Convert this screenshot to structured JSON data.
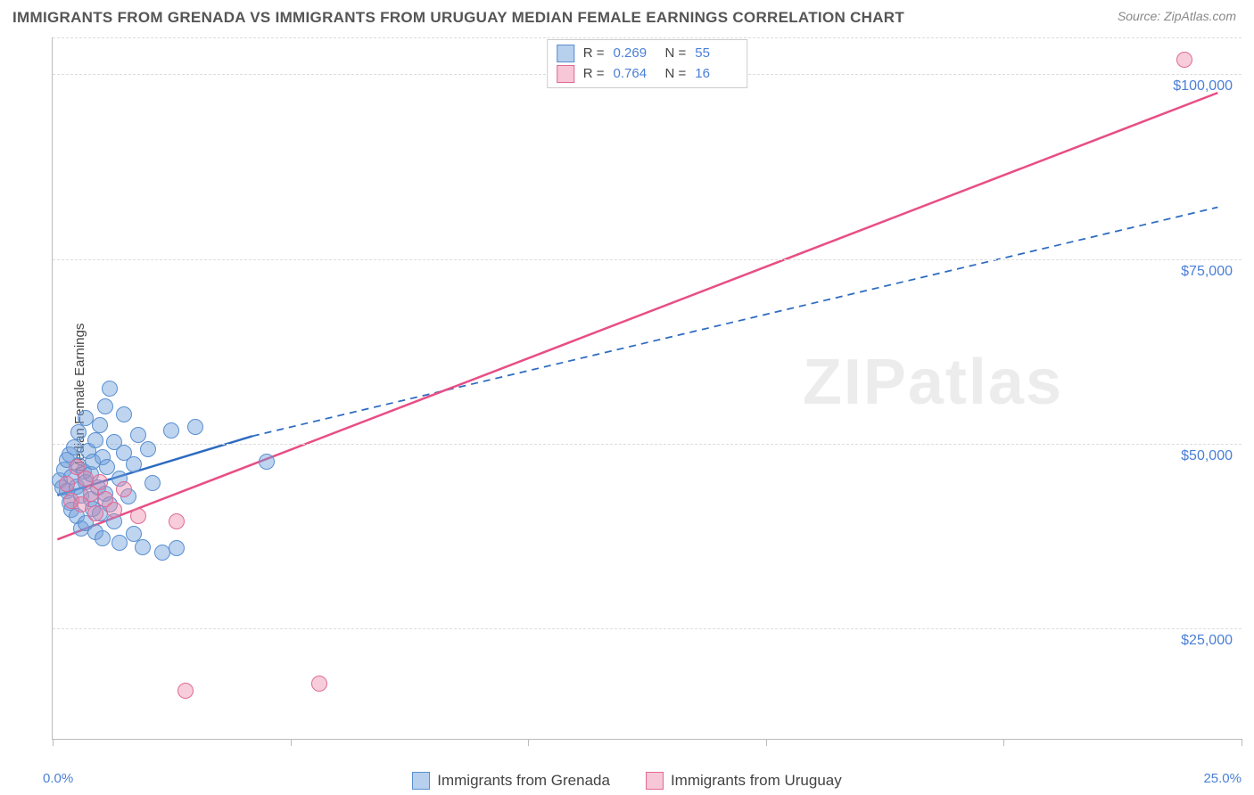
{
  "title": "IMMIGRANTS FROM GRENADA VS IMMIGRANTS FROM URUGUAY MEDIAN FEMALE EARNINGS CORRELATION CHART",
  "source": "Source: ZipAtlas.com",
  "ylabel": "Median Female Earnings",
  "watermark": "ZIPatlas",
  "chart": {
    "type": "scatter",
    "background_color": "#ffffff",
    "grid_color": "#dddddd",
    "axis_color": "#bbbbbb",
    "label_color": "#4a7fd6",
    "text_color": "#444444",
    "title_fontsize": 17,
    "tick_fontsize": 16,
    "marker_radius": 9,
    "xlim": [
      0,
      25
    ],
    "ylim": [
      10000,
      105000
    ],
    "xticks": [
      0,
      5,
      10,
      15,
      20,
      25
    ],
    "xtick_labels": {
      "0": "0.0%",
      "25": "25.0%"
    },
    "yticks": [
      25000,
      50000,
      75000,
      100000
    ],
    "ytick_labels": {
      "25000": "$25,000",
      "50000": "$50,000",
      "75000": "$75,000",
      "100000": "$100,000"
    },
    "series": [
      {
        "name": "Immigrants from Grenada",
        "color_fill": "rgba(110,160,220,0.45)",
        "color_stroke": "#5a8fd0",
        "legend_swatch_fill": "#b7d0ee",
        "legend_swatch_border": "#5a8fd0",
        "r_value": "0.269",
        "n_value": "55",
        "trend": {
          "x1": 0.1,
          "y1": 43000,
          "x2": 4.2,
          "y2": 51000,
          "dash_x2": 24.5,
          "dash_y2": 82000,
          "stroke": "#2d6bc0",
          "width": 2.5
        },
        "points": [
          [
            0.15,
            45000
          ],
          [
            0.2,
            44000
          ],
          [
            0.25,
            46500
          ],
          [
            0.3,
            43500
          ],
          [
            0.3,
            47800
          ],
          [
            0.35,
            42000
          ],
          [
            0.35,
            48500
          ],
          [
            0.4,
            45500
          ],
          [
            0.4,
            41000
          ],
          [
            0.45,
            49500
          ],
          [
            0.5,
            44200
          ],
          [
            0.5,
            40200
          ],
          [
            0.55,
            47000
          ],
          [
            0.55,
            51500
          ],
          [
            0.6,
            43000
          ],
          [
            0.6,
            38500
          ],
          [
            0.65,
            46200
          ],
          [
            0.7,
            44800
          ],
          [
            0.7,
            39200
          ],
          [
            0.7,
            53500
          ],
          [
            0.75,
            49000
          ],
          [
            0.8,
            42500
          ],
          [
            0.8,
            45800
          ],
          [
            0.85,
            41200
          ],
          [
            0.85,
            47500
          ],
          [
            0.9,
            38000
          ],
          [
            0.9,
            50500
          ],
          [
            0.95,
            44000
          ],
          [
            1.0,
            52500
          ],
          [
            1.0,
            40500
          ],
          [
            1.05,
            37200
          ],
          [
            1.05,
            48200
          ],
          [
            1.1,
            43200
          ],
          [
            1.1,
            55000
          ],
          [
            1.15,
            46800
          ],
          [
            1.2,
            41800
          ],
          [
            1.2,
            57500
          ],
          [
            1.3,
            39500
          ],
          [
            1.3,
            50200
          ],
          [
            1.4,
            45200
          ],
          [
            1.4,
            36500
          ],
          [
            1.5,
            48800
          ],
          [
            1.5,
            54000
          ],
          [
            1.6,
            42800
          ],
          [
            1.7,
            47200
          ],
          [
            1.7,
            37800
          ],
          [
            1.8,
            51200
          ],
          [
            1.9,
            36000
          ],
          [
            2.0,
            49200
          ],
          [
            2.1,
            44600
          ],
          [
            2.3,
            35200
          ],
          [
            2.5,
            51800
          ],
          [
            2.6,
            35800
          ],
          [
            3.0,
            52200
          ],
          [
            4.5,
            47500
          ]
        ]
      },
      {
        "name": "Immigrants from Uruguay",
        "color_fill": "rgba(235,130,165,0.40)",
        "color_stroke": "#e06a95",
        "legend_swatch_fill": "#f7c7d7",
        "legend_swatch_border": "#e06a95",
        "r_value": "0.764",
        "n_value": "16",
        "trend": {
          "x1": 0.1,
          "y1": 37000,
          "x2": 24.5,
          "y2": 97500,
          "stroke": "#e84e85",
          "width": 2.5
        },
        "points": [
          [
            0.3,
            44500
          ],
          [
            0.4,
            42200
          ],
          [
            0.5,
            46800
          ],
          [
            0.6,
            41800
          ],
          [
            0.7,
            45200
          ],
          [
            0.8,
            43200
          ],
          [
            0.9,
            40500
          ],
          [
            1.0,
            44800
          ],
          [
            1.1,
            42500
          ],
          [
            1.3,
            41000
          ],
          [
            1.5,
            43800
          ],
          [
            1.8,
            40200
          ],
          [
            2.6,
            39500
          ],
          [
            2.8,
            16500
          ],
          [
            5.6,
            17500
          ],
          [
            23.8,
            102000
          ]
        ]
      }
    ]
  },
  "legend_top": {
    "r_label": "R =",
    "n_label": "N ="
  }
}
